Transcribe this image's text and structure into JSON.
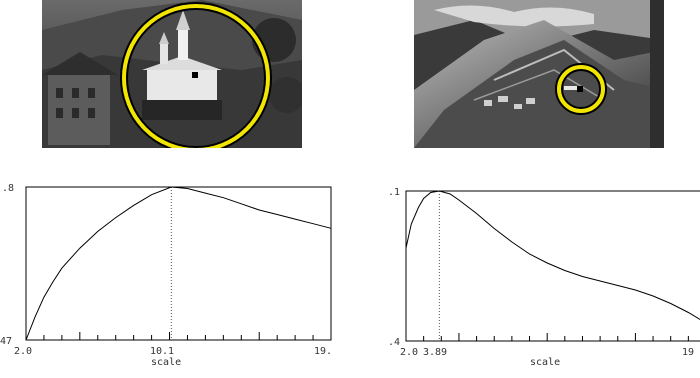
{
  "figure": {
    "left": {
      "chart_data": {
        "type": "line",
        "xlabel": "scale",
        "x_tick_labels": [
          "2.0",
          "10.1",
          "19."
        ],
        "y_tick_labels": [
          ".8",
          "47"
        ],
        "marker_x_label": "10.1",
        "xlim": [
          2.0,
          19.0
        ],
        "ylim": [
          0,
          1
        ],
        "peak_x": 10.1,
        "series": [
          {
            "x": [
              2.0,
              2.5,
              3.0,
              3.5,
              4.0,
              5.0,
              6.0,
              7.0,
              8.0,
              9.0,
              10.1,
              11.0,
              12.0,
              13.0,
              14.0,
              15.0,
              16.0,
              17.0,
              18.0,
              19.0
            ],
            "y": [
              0.0,
              0.15,
              0.28,
              0.38,
              0.47,
              0.6,
              0.71,
              0.8,
              0.88,
              0.95,
              1.0,
              0.99,
              0.96,
              0.93,
              0.89,
              0.85,
              0.82,
              0.79,
              0.76,
              0.73
            ]
          }
        ]
      }
    },
    "right": {
      "chart_data": {
        "type": "line",
        "xlabel": "scale",
        "x_tick_labels": [
          "2.0",
          "3.89",
          "19"
        ],
        "y_tick_labels": [
          ".1",
          ".4"
        ],
        "marker_x_label": "3.89",
        "xlim": [
          2.0,
          19.0
        ],
        "ylim": [
          0,
          1
        ],
        "peak_x": 3.89,
        "series": [
          {
            "x": [
              2.0,
              2.3,
              2.7,
              3.0,
              3.4,
              3.89,
              4.5,
              5.0,
              6.0,
              7.0,
              8.0,
              9.0,
              10.0,
              11.0,
              12.0,
              13.0,
              14.0,
              15.0,
              16.0,
              17.0,
              18.0,
              19.0
            ],
            "y": [
              0.62,
              0.78,
              0.89,
              0.95,
              0.99,
              1.0,
              0.98,
              0.94,
              0.85,
              0.75,
              0.66,
              0.58,
              0.52,
              0.47,
              0.43,
              0.4,
              0.37,
              0.34,
              0.3,
              0.25,
              0.19,
              0.12
            ]
          }
        ]
      }
    }
  },
  "colors": {
    "highlight_ring": "#f2e600",
    "ring_outline": "#000000",
    "curve": "#000000",
    "axis": "#000000"
  }
}
